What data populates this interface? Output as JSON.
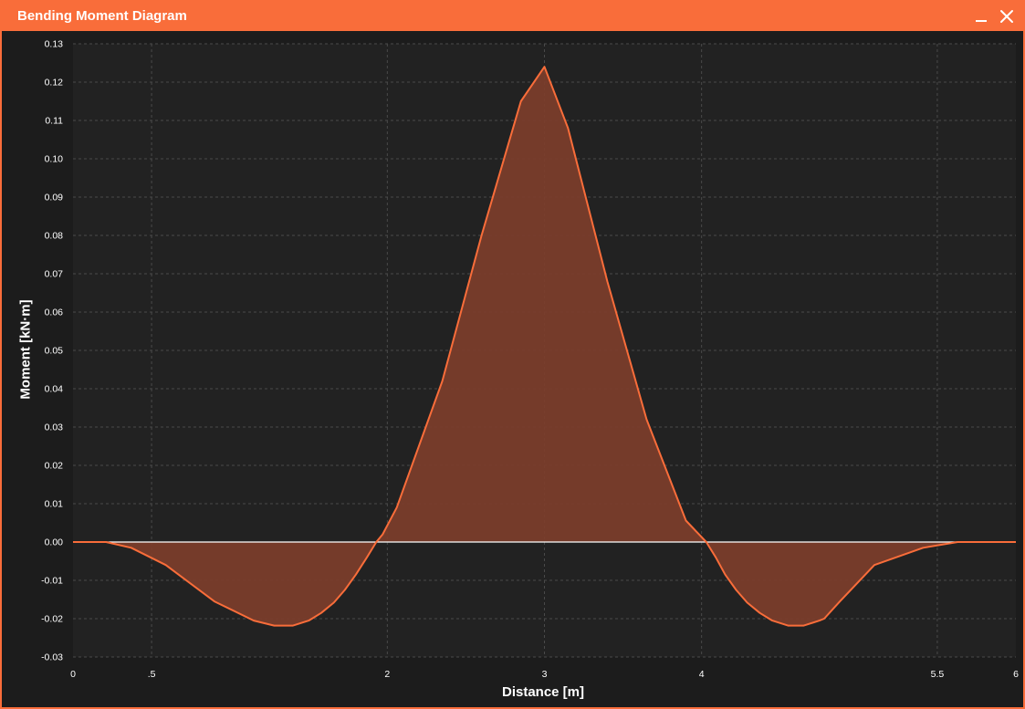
{
  "window": {
    "title": "Bending Moment Diagram",
    "minimize_icon": "minimize-icon",
    "close_icon": "close-icon"
  },
  "colors": {
    "accent": "#f96d3a",
    "fill": "#7a3d2b",
    "plot_background": "#222222",
    "window_background": "#1c1c1c",
    "zero_line": "#ffffff",
    "grid": "#4a4a4a",
    "text": "#ffffff"
  },
  "chart_data": {
    "type": "area",
    "title": "Bending Moment Diagram",
    "xlabel": "Distance [m]",
    "ylabel": "Moment [kN·m]",
    "xlim": [
      0,
      6
    ],
    "ylim": [
      -0.03,
      0.13
    ],
    "grid": true,
    "x_ticks": [
      {
        "value": 0,
        "label": "0"
      },
      {
        "value": 0.5,
        "label": ".5"
      },
      {
        "value": 2,
        "label": "2"
      },
      {
        "value": 3,
        "label": "3"
      },
      {
        "value": 4,
        "label": "4"
      },
      {
        "value": 5.5,
        "label": "5.5"
      },
      {
        "value": 6,
        "label": "6"
      }
    ],
    "y_ticks": [
      {
        "value": 0.13,
        "label": "0.13"
      },
      {
        "value": 0.12,
        "label": "0.12"
      },
      {
        "value": 0.11,
        "label": "0.11"
      },
      {
        "value": 0.1,
        "label": "0.10"
      },
      {
        "value": 0.09,
        "label": "0.09"
      },
      {
        "value": 0.08,
        "label": "0.08"
      },
      {
        "value": 0.07,
        "label": "0.07"
      },
      {
        "value": 0.06,
        "label": "0.06"
      },
      {
        "value": 0.05,
        "label": "0.05"
      },
      {
        "value": 0.04,
        "label": "0.04"
      },
      {
        "value": 0.03,
        "label": "0.03"
      },
      {
        "value": 0.02,
        "label": "0.02"
      },
      {
        "value": 0.01,
        "label": "0.01"
      },
      {
        "value": 0.0,
        "label": "0.00"
      },
      {
        "value": -0.01,
        "label": "-0.01"
      },
      {
        "value": -0.02,
        "label": "-0.02"
      },
      {
        "value": -0.03,
        "label": "-0.03"
      }
    ],
    "x": [
      0,
      0.21,
      0.37,
      0.59,
      0.9,
      1.15,
      1.28,
      1.4,
      1.5,
      1.58,
      1.66,
      1.73,
      1.8,
      1.87,
      1.93,
      1.97,
      2.06,
      2.35,
      2.6,
      2.85,
      3.0,
      3.15,
      3.4,
      3.65,
      3.9,
      4.03,
      4.09,
      4.15,
      4.22,
      4.29,
      4.37,
      4.45,
      4.55,
      4.65,
      4.75,
      4.78,
      4.88,
      5.1,
      5.41,
      5.63,
      5.79,
      6.0
    ],
    "y": [
      0,
      0,
      -0.0015,
      -0.006,
      -0.0155,
      -0.0205,
      -0.0218,
      -0.0218,
      -0.0205,
      -0.0185,
      -0.0158,
      -0.0125,
      -0.0085,
      -0.004,
      0,
      0.002,
      0.009,
      0.042,
      0.08,
      0.115,
      0.124,
      0.108,
      0.068,
      0.032,
      0.0056,
      0,
      -0.004,
      -0.0085,
      -0.0125,
      -0.0158,
      -0.0185,
      -0.0205,
      -0.0218,
      -0.0218,
      -0.0205,
      -0.02,
      -0.0155,
      -0.006,
      -0.0015,
      0,
      0,
      0
    ]
  }
}
